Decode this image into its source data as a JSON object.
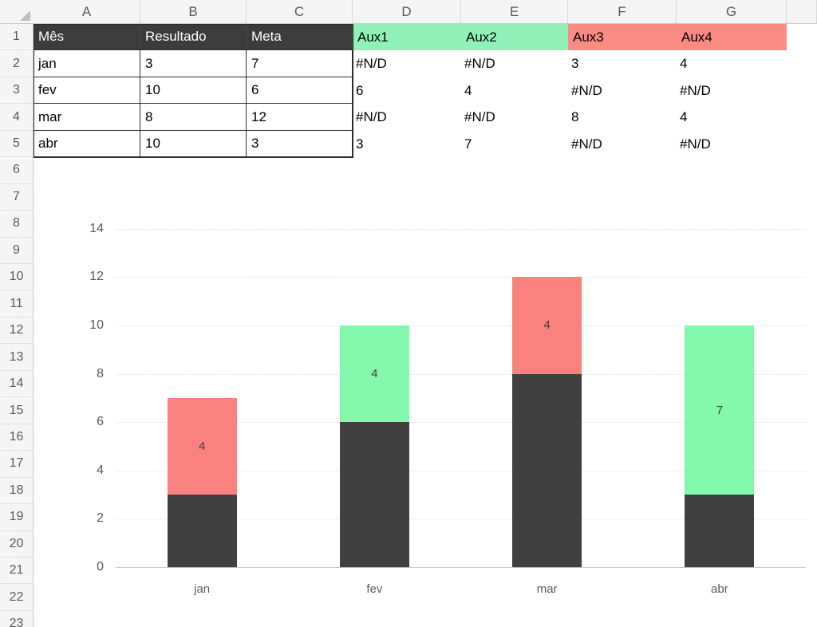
{
  "app": {
    "name": "spreadsheet-with-chart"
  },
  "colors": {
    "table_header_bg": "#3C3C3C",
    "table_header_text": "#FFFFFF",
    "aux_green_fill": "#90F1B6",
    "aux_red_fill": "#FA8B85",
    "bar_dark": "#404040",
    "bar_green": "#83F8AD",
    "bar_red": "#F9827E",
    "error_triangle_green": "#1E7B34",
    "chrome_bg": "#F5F5F5",
    "chrome_text": "#5A5A5A",
    "axis_text": "#595959",
    "gridline": "#E0E0E0",
    "table_border": "#2B2B2B"
  },
  "grid": {
    "column_letters": [
      "A",
      "B",
      "C",
      "D",
      "E",
      "F",
      "G",
      ""
    ],
    "row_numbers": [
      "1",
      "2",
      "3",
      "4",
      "5",
      "6",
      "7",
      "8",
      "9",
      "10",
      "11",
      "12",
      "13",
      "14",
      "15",
      "16",
      "17",
      "18",
      "19",
      "20",
      "21",
      "22",
      "23"
    ]
  },
  "sheet": {
    "rows": [
      {
        "row": 1,
        "cells": [
          {
            "col": "A",
            "text": "Mês",
            "fill": "dark",
            "table": true
          },
          {
            "col": "B",
            "text": "Resultado",
            "fill": "dark",
            "table": true
          },
          {
            "col": "C",
            "text": "Meta",
            "fill": "dark",
            "table": true
          },
          {
            "col": "D",
            "text": "Aux1",
            "fill": "green"
          },
          {
            "col": "E",
            "text": "Aux2",
            "fill": "green"
          },
          {
            "col": "F",
            "text": "Aux3",
            "fill": "red"
          },
          {
            "col": "G",
            "text": "Aux4",
            "fill": "red"
          }
        ]
      },
      {
        "row": 2,
        "cells": [
          {
            "col": "A",
            "text": "jan",
            "table": true
          },
          {
            "col": "B",
            "text": "3",
            "table": true
          },
          {
            "col": "C",
            "text": "7",
            "table": true
          },
          {
            "col": "D",
            "text": "#N/D",
            "error": true
          },
          {
            "col": "E",
            "text": "#N/D",
            "error": true
          },
          {
            "col": "F",
            "text": "3"
          },
          {
            "col": "G",
            "text": "4"
          }
        ]
      },
      {
        "row": 3,
        "cells": [
          {
            "col": "A",
            "text": "fev",
            "table": true
          },
          {
            "col": "B",
            "text": "10",
            "table": true
          },
          {
            "col": "C",
            "text": "6",
            "table": true
          },
          {
            "col": "D",
            "text": "6"
          },
          {
            "col": "E",
            "text": "4"
          },
          {
            "col": "F",
            "text": "#N/D",
            "error": true
          },
          {
            "col": "G",
            "text": "#N/D",
            "error": true
          }
        ]
      },
      {
        "row": 4,
        "cells": [
          {
            "col": "A",
            "text": "mar",
            "table": true
          },
          {
            "col": "B",
            "text": "8",
            "table": true
          },
          {
            "col": "C",
            "text": "12",
            "table": true
          },
          {
            "col": "D",
            "text": "#N/D",
            "error": true
          },
          {
            "col": "E",
            "text": "#N/D",
            "error": true
          },
          {
            "col": "F",
            "text": "8"
          },
          {
            "col": "G",
            "text": "4"
          }
        ]
      },
      {
        "row": 5,
        "cells": [
          {
            "col": "A",
            "text": "abr",
            "table": true
          },
          {
            "col": "B",
            "text": "10",
            "table": true
          },
          {
            "col": "C",
            "text": "3",
            "table": true
          },
          {
            "col": "D",
            "text": "3"
          },
          {
            "col": "E",
            "text": "7"
          },
          {
            "col": "F",
            "text": "#N/D",
            "error": true
          },
          {
            "col": "G",
            "text": "#N/D",
            "error": true
          }
        ]
      }
    ]
  },
  "chart_data": {
    "type": "bar",
    "stacked": true,
    "title": "",
    "categories": [
      "jan",
      "fev",
      "mar",
      "abr"
    ],
    "series": [
      {
        "name": "dark",
        "color": "#404040",
        "values": [
          3,
          6,
          8,
          3
        ],
        "show_labels": false
      },
      {
        "name": "green",
        "color": "#83F8AD",
        "values": [
          0,
          4,
          0,
          7
        ],
        "show_labels": true
      },
      {
        "name": "red",
        "color": "#F9827E",
        "values": [
          4,
          0,
          4,
          0
        ],
        "show_labels": true
      }
    ],
    "ylim": [
      0,
      14
    ],
    "yticks": [
      0,
      2,
      4,
      6,
      8,
      10,
      12,
      14
    ],
    "grid": "horizontal-dotted",
    "legend": "none"
  }
}
